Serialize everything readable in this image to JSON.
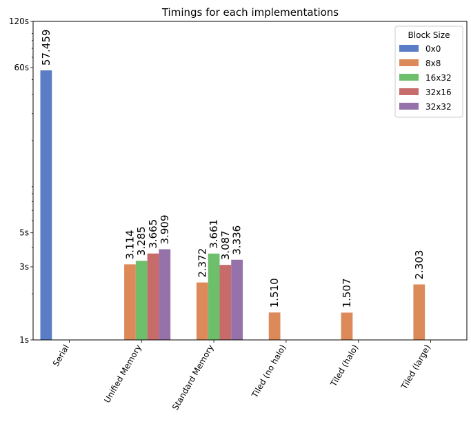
{
  "chart_data": {
    "type": "bar",
    "title": "Timings for each implementations",
    "xlabel": "",
    "ylabel": "",
    "yscale": "log",
    "ylim": [
      1,
      120
    ],
    "yticks": [
      {
        "value": 1,
        "label": "1s"
      },
      {
        "value": 3,
        "label": "3s"
      },
      {
        "value": 5,
        "label": "5s"
      },
      {
        "value": 60,
        "label": "60s"
      },
      {
        "value": 120,
        "label": "120s"
      }
    ],
    "categories": [
      "Serial",
      "Unified Memory",
      "Standard Memory",
      "Tiled (no halo)",
      "Tiled (halo)",
      "Tiled (large)"
    ],
    "legend_title": "Block Size",
    "legend_position": "top-right",
    "grid": false,
    "series": [
      {
        "name": "0x0",
        "color": "#5a7dc5",
        "values": [
          57.459,
          null,
          null,
          null,
          null,
          null
        ],
        "labels": [
          "57.459",
          null,
          null,
          null,
          null,
          null
        ]
      },
      {
        "name": "8x8",
        "color": "#dd8a5a",
        "values": [
          null,
          3.114,
          2.372,
          1.51,
          1.507,
          2.303
        ],
        "labels": [
          null,
          "3.114",
          "2.372",
          "1.510",
          "1.507",
          "2.303"
        ]
      },
      {
        "name": "16x32",
        "color": "#6dbf6b",
        "values": [
          null,
          3.285,
          3.661,
          null,
          null,
          null
        ],
        "labels": [
          null,
          "3.285",
          "3.661",
          null,
          null,
          null
        ]
      },
      {
        "name": "32x16",
        "color": "#c76b6b",
        "values": [
          null,
          3.665,
          3.087,
          null,
          null,
          null
        ],
        "labels": [
          null,
          "3.665",
          "3.087",
          null,
          null,
          null
        ]
      },
      {
        "name": "32x32",
        "color": "#9672ab",
        "values": [
          null,
          3.909,
          3.336,
          null,
          null,
          null
        ],
        "labels": [
          null,
          "3.909",
          "3.336",
          null,
          null,
          null
        ]
      }
    ]
  }
}
